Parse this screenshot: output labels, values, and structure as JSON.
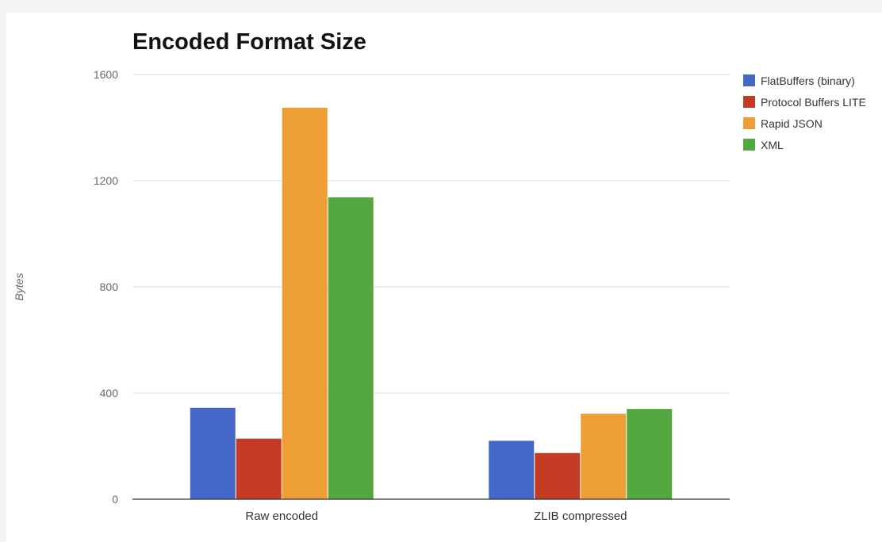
{
  "chart_data": {
    "type": "bar",
    "title": "Encoded Format Size",
    "ylabel": "Bytes",
    "xlabel": "",
    "ylim": [
      0,
      1600
    ],
    "yticks": [
      0,
      400,
      800,
      1200,
      1600
    ],
    "grid": true,
    "legend_position": "right",
    "categories": [
      "Raw encoded",
      "ZLIB compressed"
    ],
    "series": [
      {
        "name": "FlatBuffers (binary)",
        "color": "#4368c8",
        "values": [
          344,
          220
        ]
      },
      {
        "name": "Protocol Buffers LITE",
        "color": "#c23b22",
        "values": [
          228,
          174
        ]
      },
      {
        "name": "Rapid JSON",
        "color": "#ed9e35",
        "values": [
          1475,
          322
        ]
      },
      {
        "name": "XML",
        "color": "#53a93f",
        "values": [
          1137,
          340
        ]
      }
    ]
  }
}
